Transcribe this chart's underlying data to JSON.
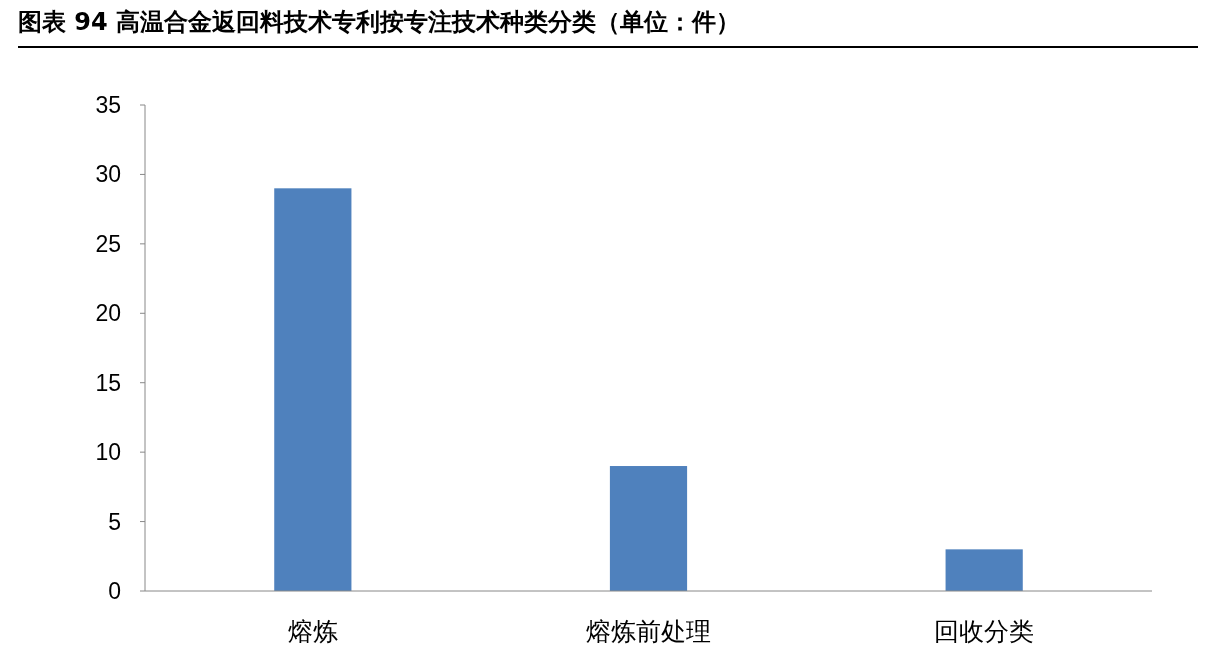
{
  "chart_data": {
    "type": "bar",
    "title": "图表 94 高温合金返回料技术专利按专注技术种类分类（单位：件）",
    "categories": [
      "熔炼",
      "熔炼前处理",
      "回收分类"
    ],
    "values": [
      29,
      9,
      3
    ],
    "color": "#4f81bd",
    "ylim": [
      0,
      35
    ],
    "yticks": [
      0,
      5,
      10,
      15,
      20,
      25,
      30,
      35
    ]
  }
}
